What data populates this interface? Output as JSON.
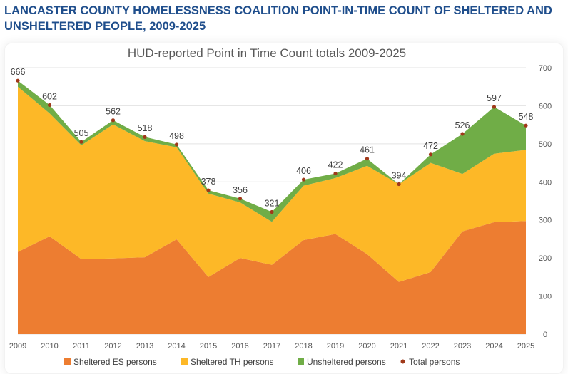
{
  "page": {
    "heading_line1": "LANCASTER COUNTY HOMELESSNESS COALITION POINT-IN-TIME COUNT OF SHELTERED AND",
    "heading_line2": "UNSHELTERED PEOPLE, 2009-2025"
  },
  "colors": {
    "heading": "#1f4e8c",
    "es": "#ed7d31",
    "th": "#fdb827",
    "unsheltered": "#70ad47",
    "total_marker": "#a0391a",
    "grid": "#e3e3e3",
    "text": "#555555"
  },
  "chart_data": {
    "type": "area",
    "stacked": true,
    "title": "HUD-reported Point in Time Count totals 2009-2025",
    "x": [
      "2009",
      "2010",
      "2011",
      "2012",
      "2013",
      "2014",
      "2015",
      "2016",
      "2017",
      "2018",
      "2019",
      "2020",
      "2021",
      "2022",
      "2023",
      "2024",
      "2025"
    ],
    "series": [
      {
        "name": "Sheltered ES persons",
        "values": [
          216,
          257,
          197,
          199,
          202,
          249,
          150,
          200,
          182,
          247,
          263,
          210,
          137,
          163,
          270,
          294,
          297
        ]
      },
      {
        "name": "Sheltered TH persons",
        "values": [
          434,
          323,
          299,
          352,
          305,
          242,
          219,
          146,
          113,
          143,
          147,
          232,
          257,
          287,
          151,
          180,
          187
        ]
      },
      {
        "name": "Unsheltered persons",
        "values": [
          16,
          22,
          9,
          11,
          11,
          7,
          9,
          10,
          26,
          16,
          12,
          19,
          0,
          22,
          105,
          123,
          64
        ]
      }
    ],
    "totals": {
      "name": "Total persons",
      "values": [
        666,
        602,
        505,
        562,
        518,
        498,
        378,
        356,
        321,
        406,
        422,
        461,
        394,
        472,
        526,
        597,
        548
      ]
    },
    "y_axis": {
      "min": 0,
      "max": 700,
      "ticks": [
        0,
        100,
        200,
        300,
        400,
        500,
        600,
        700
      ],
      "position": "right"
    },
    "gridlines": true,
    "legend_position": "bottom"
  }
}
